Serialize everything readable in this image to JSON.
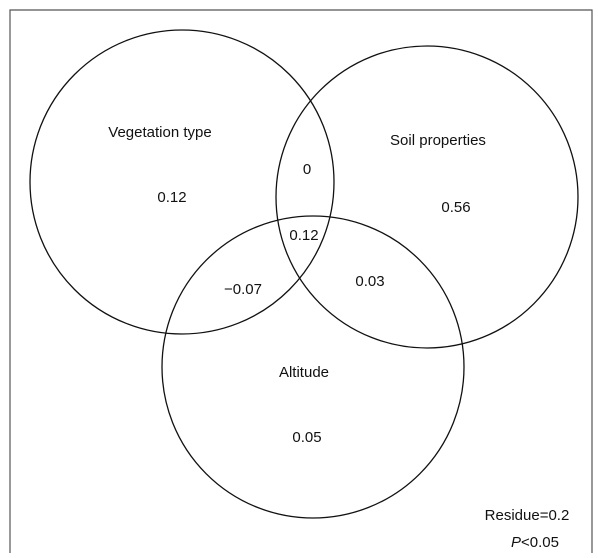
{
  "sets": [
    {
      "label": "Vegetation type",
      "value": "0.12"
    },
    {
      "label": "Soil properties",
      "value": "0.56"
    },
    {
      "label": "Altitude",
      "value": "0.05"
    }
  ],
  "intersections": [
    {
      "sets": "Vegetation type & Soil properties",
      "value": "0"
    },
    {
      "sets": "Vegetation type & Altitude",
      "value": "−0.07"
    },
    {
      "sets": "Soil properties & Altitude",
      "value": "0.03"
    },
    {
      "sets": "All three",
      "value": "0.12"
    }
  ],
  "residue": "Residue=0.2",
  "significance": {
    "symbol": "P",
    "text": "<0.05"
  }
}
